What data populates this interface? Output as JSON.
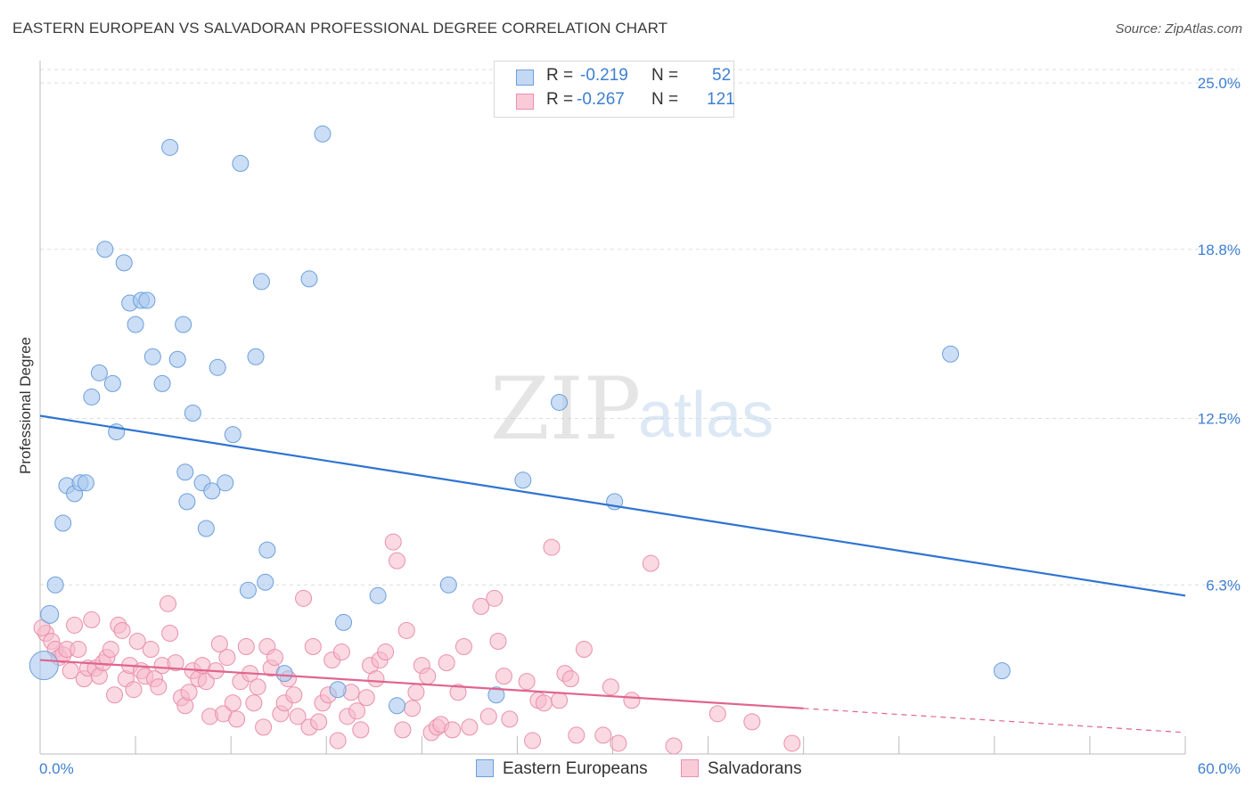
{
  "chart_data": {
    "type": "scatter",
    "title": "EASTERN EUROPEAN VS SALVADORAN PROFESSIONAL DEGREE CORRELATION CHART",
    "source": "Source: ZipAtlas.com",
    "ylabel": "Professional Degree",
    "xlabel": "",
    "xlim": [
      0,
      60
    ],
    "ylim": [
      0,
      25.5
    ],
    "x_tick_labels": [
      "0.0%",
      "60.0%"
    ],
    "y_ticks": [
      6.3,
      12.5,
      18.8,
      25.0
    ],
    "y_tick_labels": [
      "6.3%",
      "12.5%",
      "18.8%",
      "25.0%"
    ],
    "watermark": {
      "zip": "ZIP",
      "atlas": "atlas"
    },
    "legend_stats": [
      {
        "r_label": "R =",
        "r_value": "-0.219",
        "n_label": "N =",
        "n_value": "52"
      },
      {
        "r_label": "R =",
        "r_value": "-0.267",
        "n_label": "N =",
        "n_value": "121"
      }
    ],
    "colors": {
      "eastern_fill": "#a9c8ef",
      "eastern_stroke": "#6d9fdc",
      "eastern_line": "#2f74d0",
      "salv_fill": "#f6b9cb",
      "salv_stroke": "#ea8fac",
      "salv_line": "#e0648e",
      "axis_text": "#3d7fd1",
      "grid": "#dddddd"
    },
    "series": [
      {
        "name": "Eastern Europeans",
        "trend": {
          "x0": 0,
          "y0": 12.6,
          "x1": 60,
          "y1": 5.9
        },
        "points": [
          [
            0.2,
            3.3
          ],
          [
            0.5,
            5.2
          ],
          [
            0.8,
            6.3
          ],
          [
            1.2,
            8.6
          ],
          [
            1.4,
            10.0
          ],
          [
            1.8,
            9.7
          ],
          [
            2.1,
            10.1
          ],
          [
            2.4,
            10.1
          ],
          [
            2.7,
            13.3
          ],
          [
            3.1,
            14.2
          ],
          [
            3.4,
            18.8
          ],
          [
            3.8,
            13.8
          ],
          [
            4.0,
            12.0
          ],
          [
            4.4,
            18.3
          ],
          [
            4.7,
            16.8
          ],
          [
            5.0,
            16.0
          ],
          [
            5.3,
            16.9
          ],
          [
            5.6,
            16.9
          ],
          [
            5.9,
            14.8
          ],
          [
            6.4,
            13.8
          ],
          [
            6.8,
            22.6
          ],
          [
            7.2,
            14.7
          ],
          [
            7.5,
            16.0
          ],
          [
            7.6,
            10.5
          ],
          [
            7.7,
            9.4
          ],
          [
            8.0,
            12.7
          ],
          [
            8.5,
            10.1
          ],
          [
            8.7,
            8.4
          ],
          [
            9.0,
            9.8
          ],
          [
            9.3,
            14.4
          ],
          [
            9.7,
            10.1
          ],
          [
            10.1,
            11.9
          ],
          [
            10.5,
            22.0
          ],
          [
            10.9,
            6.1
          ],
          [
            11.3,
            14.8
          ],
          [
            11.6,
            17.6
          ],
          [
            11.8,
            6.4
          ],
          [
            11.9,
            7.6
          ],
          [
            12.8,
            3.0
          ],
          [
            14.1,
            17.7
          ],
          [
            14.8,
            23.1
          ],
          [
            15.6,
            2.4
          ],
          [
            15.9,
            4.9
          ],
          [
            17.7,
            5.9
          ],
          [
            18.7,
            1.8
          ],
          [
            21.4,
            6.3
          ],
          [
            23.9,
            2.2
          ],
          [
            25.3,
            10.2
          ],
          [
            27.2,
            13.1
          ],
          [
            30.1,
            9.4
          ],
          [
            47.7,
            14.9
          ],
          [
            50.4,
            3.1
          ]
        ],
        "sizes": [
          32,
          20,
          18,
          18,
          18,
          18,
          18,
          18,
          18,
          18,
          18,
          18,
          18,
          18,
          18,
          18,
          18,
          18,
          18,
          18,
          18,
          18,
          18,
          18,
          18,
          18,
          18,
          18,
          18,
          18,
          18,
          18,
          18,
          18,
          18,
          18,
          18,
          18,
          18,
          18,
          18,
          18,
          18,
          18,
          18,
          18,
          18,
          18,
          18,
          18,
          18,
          18
        ]
      },
      {
        "name": "Salvadorans",
        "trend": {
          "x0": 0,
          "y0": 3.5,
          "x1": 40,
          "y1": 1.7,
          "dash_x1": 60,
          "dash_y1": 0.8
        },
        "points": [
          [
            0.3,
            4.5
          ],
          [
            0.6,
            4.2
          ],
          [
            0.8,
            3.9
          ],
          [
            1.0,
            3.6
          ],
          [
            1.2,
            3.7
          ],
          [
            1.4,
            3.9
          ],
          [
            1.6,
            3.1
          ],
          [
            1.8,
            4.8
          ],
          [
            2.0,
            3.9
          ],
          [
            2.3,
            2.8
          ],
          [
            2.5,
            3.2
          ],
          [
            2.7,
            5.0
          ],
          [
            2.9,
            3.2
          ],
          [
            3.1,
            2.9
          ],
          [
            3.3,
            3.4
          ],
          [
            3.5,
            3.6
          ],
          [
            3.7,
            3.9
          ],
          [
            3.9,
            2.2
          ],
          [
            4.1,
            4.8
          ],
          [
            4.3,
            4.6
          ],
          [
            4.5,
            2.8
          ],
          [
            4.7,
            3.3
          ],
          [
            4.9,
            2.4
          ],
          [
            5.1,
            4.2
          ],
          [
            5.3,
            3.1
          ],
          [
            5.5,
            2.9
          ],
          [
            5.8,
            3.9
          ],
          [
            6.0,
            2.8
          ],
          [
            6.2,
            2.5
          ],
          [
            6.4,
            3.3
          ],
          [
            6.7,
            5.6
          ],
          [
            6.8,
            4.5
          ],
          [
            7.1,
            3.4
          ],
          [
            7.4,
            2.1
          ],
          [
            7.6,
            1.8
          ],
          [
            7.8,
            2.3
          ],
          [
            8.0,
            3.1
          ],
          [
            8.3,
            2.8
          ],
          [
            8.5,
            3.3
          ],
          [
            8.7,
            2.7
          ],
          [
            8.9,
            1.4
          ],
          [
            9.2,
            3.1
          ],
          [
            9.4,
            4.1
          ],
          [
            9.6,
            1.5
          ],
          [
            9.8,
            3.6
          ],
          [
            10.1,
            1.9
          ],
          [
            10.3,
            1.3
          ],
          [
            10.5,
            2.7
          ],
          [
            10.8,
            4.0
          ],
          [
            11.0,
            3.0
          ],
          [
            11.2,
            1.9
          ],
          [
            11.4,
            2.5
          ],
          [
            11.7,
            1.0
          ],
          [
            11.9,
            4.0
          ],
          [
            12.1,
            3.2
          ],
          [
            12.3,
            3.6
          ],
          [
            12.6,
            1.5
          ],
          [
            12.8,
            1.9
          ],
          [
            13.0,
            2.8
          ],
          [
            13.3,
            2.2
          ],
          [
            13.5,
            1.4
          ],
          [
            13.8,
            5.8
          ],
          [
            14.1,
            1.0
          ],
          [
            14.3,
            4.0
          ],
          [
            14.6,
            1.2
          ],
          [
            14.8,
            1.9
          ],
          [
            15.1,
            2.2
          ],
          [
            15.3,
            3.5
          ],
          [
            15.6,
            0.5
          ],
          [
            15.8,
            3.8
          ],
          [
            16.1,
            1.4
          ],
          [
            16.3,
            2.3
          ],
          [
            16.6,
            1.6
          ],
          [
            16.8,
            0.9
          ],
          [
            17.1,
            2.1
          ],
          [
            17.3,
            3.3
          ],
          [
            17.6,
            2.8
          ],
          [
            17.8,
            3.5
          ],
          [
            18.1,
            3.8
          ],
          [
            18.5,
            7.9
          ],
          [
            18.7,
            7.2
          ],
          [
            19.0,
            0.9
          ],
          [
            19.2,
            4.6
          ],
          [
            19.5,
            1.7
          ],
          [
            19.7,
            2.3
          ],
          [
            20.0,
            3.3
          ],
          [
            20.3,
            2.9
          ],
          [
            20.5,
            0.8
          ],
          [
            20.8,
            1.0
          ],
          [
            21.0,
            1.1
          ],
          [
            21.3,
            3.4
          ],
          [
            21.6,
            0.9
          ],
          [
            21.9,
            2.3
          ],
          [
            22.2,
            4.0
          ],
          [
            22.5,
            1.0
          ],
          [
            23.1,
            5.5
          ],
          [
            23.5,
            1.4
          ],
          [
            23.8,
            5.8
          ],
          [
            24.0,
            4.2
          ],
          [
            24.3,
            2.9
          ],
          [
            24.6,
            1.3
          ],
          [
            25.5,
            2.7
          ],
          [
            25.8,
            0.5
          ],
          [
            26.1,
            2.0
          ],
          [
            26.4,
            1.9
          ],
          [
            26.8,
            7.7
          ],
          [
            27.2,
            2.0
          ],
          [
            27.5,
            3.0
          ],
          [
            27.8,
            2.8
          ],
          [
            28.1,
            0.7
          ],
          [
            28.5,
            3.9
          ],
          [
            29.5,
            0.7
          ],
          [
            29.9,
            2.5
          ],
          [
            30.3,
            0.4
          ],
          [
            31.0,
            2.0
          ],
          [
            32.0,
            7.1
          ],
          [
            33.2,
            0.3
          ],
          [
            35.5,
            1.5
          ],
          [
            37.3,
            1.2
          ],
          [
            39.4,
            0.4
          ],
          [
            0.1,
            4.7
          ]
        ]
      }
    ]
  }
}
